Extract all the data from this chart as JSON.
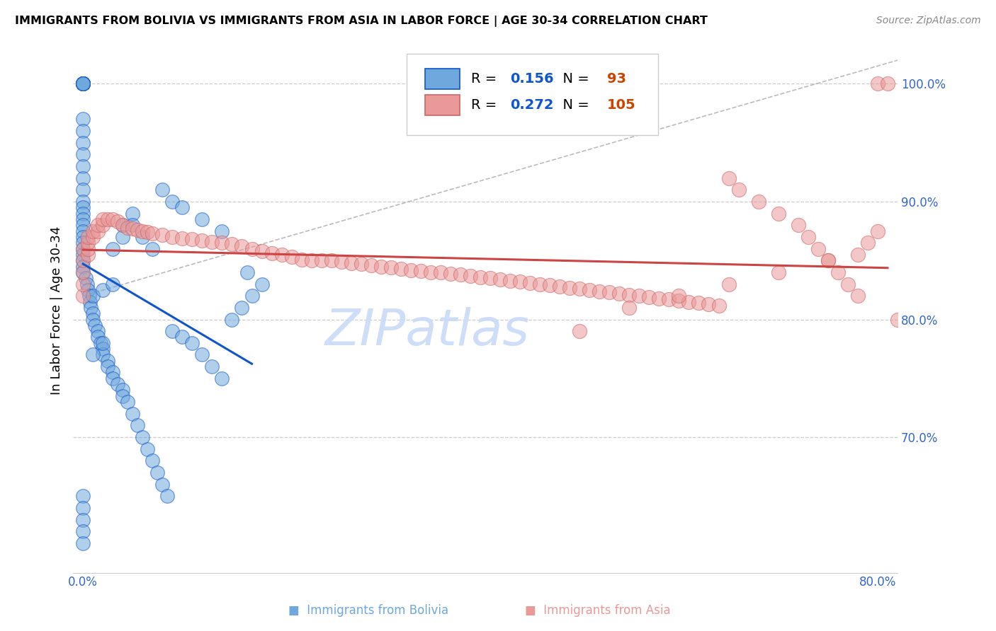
{
  "title": "IMMIGRANTS FROM BOLIVIA VS IMMIGRANTS FROM ASIA IN LABOR FORCE | AGE 30-34 CORRELATION CHART",
  "source": "Source: ZipAtlas.com",
  "ylabel": "In Labor Force | Age 30-34",
  "xlim": [
    -0.01,
    0.82
  ],
  "ylim": [
    0.585,
    1.03
  ],
  "bolivia_R": 0.156,
  "bolivia_N": 93,
  "asia_R": 0.272,
  "asia_N": 105,
  "bolivia_color": "#6fa8dc",
  "asia_color": "#ea9999",
  "bolivia_line_color": "#1155cc",
  "asia_line_color": "#cc4444",
  "dashed_line_color": "#aaaaaa",
  "watermark_text": "ZIPatlas",
  "watermark_color": "#c9daf8",
  "bolivia_scatter_x": [
    0.0,
    0.0,
    0.0,
    0.0,
    0.0,
    0.0,
    0.0,
    0.0,
    0.0,
    0.0,
    0.0,
    0.0,
    0.0,
    0.0,
    0.0,
    0.0,
    0.0,
    0.0,
    0.0,
    0.0,
    0.0,
    0.0,
    0.0,
    0.0,
    0.0,
    0.0,
    0.0,
    0.0,
    0.0,
    0.0,
    0.003,
    0.004,
    0.005,
    0.006,
    0.007,
    0.008,
    0.01,
    0.01,
    0.012,
    0.015,
    0.015,
    0.018,
    0.02,
    0.02,
    0.025,
    0.025,
    0.03,
    0.03,
    0.035,
    0.04,
    0.04,
    0.045,
    0.05,
    0.055,
    0.06,
    0.065,
    0.07,
    0.075,
    0.08,
    0.085,
    0.09,
    0.1,
    0.11,
    0.12,
    0.13,
    0.14,
    0.15,
    0.16,
    0.17,
    0.18,
    0.0,
    0.0,
    0.0,
    0.0,
    0.0,
    0.01,
    0.02,
    0.03,
    0.04,
    0.05,
    0.06,
    0.07,
    0.08,
    0.09,
    0.1,
    0.12,
    0.14,
    0.165,
    0.01,
    0.02,
    0.03,
    0.04,
    0.05
  ],
  "bolivia_scatter_y": [
    1.0,
    1.0,
    1.0,
    1.0,
    1.0,
    1.0,
    1.0,
    1.0,
    1.0,
    1.0,
    0.97,
    0.96,
    0.95,
    0.94,
    0.93,
    0.92,
    0.91,
    0.9,
    0.895,
    0.89,
    0.885,
    0.88,
    0.875,
    0.87,
    0.865,
    0.86,
    0.855,
    0.85,
    0.845,
    0.84,
    0.835,
    0.83,
    0.825,
    0.82,
    0.815,
    0.81,
    0.805,
    0.8,
    0.795,
    0.79,
    0.785,
    0.78,
    0.775,
    0.77,
    0.765,
    0.76,
    0.755,
    0.75,
    0.745,
    0.74,
    0.735,
    0.73,
    0.72,
    0.71,
    0.7,
    0.69,
    0.68,
    0.67,
    0.66,
    0.65,
    0.79,
    0.785,
    0.78,
    0.77,
    0.76,
    0.75,
    0.8,
    0.81,
    0.82,
    0.83,
    0.65,
    0.64,
    0.63,
    0.62,
    0.61,
    0.82,
    0.825,
    0.83,
    0.88,
    0.89,
    0.87,
    0.86,
    0.91,
    0.9,
    0.895,
    0.885,
    0.875,
    0.84,
    0.77,
    0.78,
    0.86,
    0.87,
    0.88
  ],
  "asia_scatter_x": [
    0.0,
    0.0,
    0.0,
    0.0,
    0.0,
    0.005,
    0.005,
    0.005,
    0.005,
    0.01,
    0.01,
    0.015,
    0.015,
    0.02,
    0.02,
    0.025,
    0.03,
    0.035,
    0.04,
    0.045,
    0.05,
    0.055,
    0.06,
    0.065,
    0.07,
    0.08,
    0.09,
    0.1,
    0.11,
    0.12,
    0.13,
    0.14,
    0.15,
    0.16,
    0.17,
    0.18,
    0.19,
    0.2,
    0.21,
    0.22,
    0.23,
    0.24,
    0.25,
    0.26,
    0.27,
    0.28,
    0.29,
    0.3,
    0.31,
    0.32,
    0.33,
    0.34,
    0.35,
    0.36,
    0.37,
    0.38,
    0.39,
    0.4,
    0.41,
    0.42,
    0.43,
    0.44,
    0.45,
    0.46,
    0.47,
    0.48,
    0.49,
    0.5,
    0.51,
    0.52,
    0.53,
    0.54,
    0.55,
    0.56,
    0.57,
    0.58,
    0.59,
    0.6,
    0.61,
    0.62,
    0.63,
    0.64,
    0.65,
    0.66,
    0.68,
    0.7,
    0.72,
    0.73,
    0.74,
    0.75,
    0.76,
    0.77,
    0.78,
    0.8,
    0.81,
    0.82,
    0.5,
    0.55,
    0.6,
    0.65,
    0.7,
    0.75,
    0.8,
    0.79,
    0.78
  ],
  "asia_scatter_y": [
    0.82,
    0.83,
    0.84,
    0.85,
    0.86,
    0.855,
    0.86,
    0.865,
    0.87,
    0.87,
    0.875,
    0.875,
    0.88,
    0.88,
    0.885,
    0.885,
    0.885,
    0.883,
    0.88,
    0.878,
    0.877,
    0.876,
    0.875,
    0.874,
    0.873,
    0.872,
    0.87,
    0.869,
    0.868,
    0.867,
    0.866,
    0.865,
    0.864,
    0.862,
    0.86,
    0.858,
    0.856,
    0.855,
    0.853,
    0.851,
    0.85,
    0.85,
    0.85,
    0.849,
    0.848,
    0.847,
    0.846,
    0.845,
    0.844,
    0.843,
    0.842,
    0.841,
    0.84,
    0.84,
    0.839,
    0.838,
    0.837,
    0.836,
    0.835,
    0.834,
    0.833,
    0.832,
    0.831,
    0.83,
    0.829,
    0.828,
    0.827,
    0.826,
    0.825,
    0.824,
    0.823,
    0.822,
    0.821,
    0.82,
    0.819,
    0.818,
    0.817,
    0.816,
    0.815,
    0.814,
    0.813,
    0.812,
    0.92,
    0.91,
    0.9,
    0.89,
    0.88,
    0.87,
    0.86,
    0.85,
    0.84,
    0.83,
    0.82,
    1.0,
    1.0,
    0.8,
    0.79,
    0.81,
    0.82,
    0.83,
    0.84,
    0.85,
    0.875,
    0.865,
    0.855
  ]
}
